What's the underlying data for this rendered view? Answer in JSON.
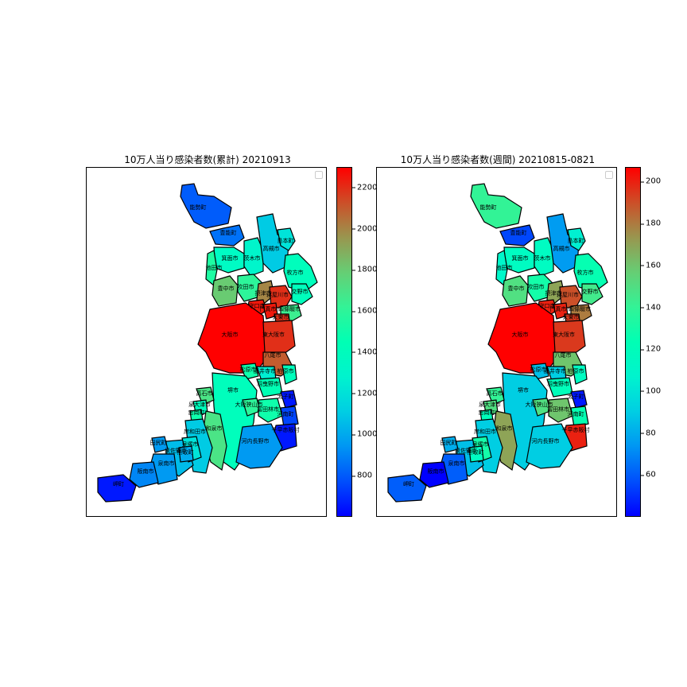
{
  "panels": [
    {
      "title": "10万人当り感染者数(累計)  20210913",
      "colorbar": {
        "colormap": "rainbow",
        "min": 600,
        "max": 2300,
        "ticks": [
          "800",
          "1000",
          "1200",
          "1400",
          "1600",
          "1800",
          "2000",
          "2200"
        ]
      }
    },
    {
      "title": "10万人当り感染者数(週間)  20210815-0821",
      "colorbar": {
        "colormap": "rainbow",
        "min": 40,
        "max": 207,
        "ticks": [
          "60",
          "80",
          "100",
          "120",
          "140",
          "160",
          "180",
          "200"
        ]
      }
    }
  ],
  "municipalities": [
    {
      "name": "能勢町",
      "cumulative": 800,
      "weekly": 140
    },
    {
      "name": "豊能町",
      "cumulative": 850,
      "weekly": 55
    },
    {
      "name": "箕面市",
      "cumulative": 1350,
      "weekly": 115
    },
    {
      "name": "池田市",
      "cumulative": 1550,
      "weekly": 110
    },
    {
      "name": "茨木市",
      "cumulative": 1300,
      "weekly": 115
    },
    {
      "name": "高槻市",
      "cumulative": 1100,
      "weekly": 75
    },
    {
      "name": "島本町",
      "cumulative": 1200,
      "weekly": 105
    },
    {
      "name": "豊中市",
      "cumulative": 1800,
      "weekly": 150
    },
    {
      "name": "吹田市",
      "cumulative": 1600,
      "weekly": 130
    },
    {
      "name": "摂津市",
      "cumulative": 2000,
      "weekly": 170
    },
    {
      "name": "枚方市",
      "cumulative": 1400,
      "weekly": 125
    },
    {
      "name": "寝屋川市",
      "cumulative": 2200,
      "weekly": 190
    },
    {
      "name": "交野市",
      "cumulative": 1400,
      "weekly": 145
    },
    {
      "name": "守口市",
      "cumulative": 2250,
      "weekly": 200
    },
    {
      "name": "門真市",
      "cumulative": 2250,
      "weekly": 200
    },
    {
      "name": "四條畷市",
      "cumulative": 1650,
      "weekly": 180
    },
    {
      "name": "大東市",
      "cumulative": 2200,
      "weekly": 195
    },
    {
      "name": "大阪市",
      "cumulative": 2300,
      "weekly": 207
    },
    {
      "name": "東大阪市",
      "cumulative": 2200,
      "weekly": 195
    },
    {
      "name": "八尾市",
      "cumulative": 2100,
      "weekly": 160
    },
    {
      "name": "松原市",
      "cumulative": 1500,
      "weekly": 85
    },
    {
      "name": "柏原市",
      "cumulative": 1400,
      "weekly": 115
    },
    {
      "name": "藤井寺市",
      "cumulative": 1250,
      "weekly": 90
    },
    {
      "name": "羽曳野市",
      "cumulative": 1450,
      "weekly": 120
    },
    {
      "name": "堺市",
      "cumulative": 1400,
      "weekly": 90
    },
    {
      "name": "大阪狭山市",
      "cumulative": 1600,
      "weekly": 150
    },
    {
      "name": "富田林市",
      "cumulative": 1500,
      "weekly": 160
    },
    {
      "name": "太子町",
      "cumulative": 650,
      "weekly": 45
    },
    {
      "name": "河南町",
      "cumulative": 750,
      "weekly": 125
    },
    {
      "name": "千早赤阪村",
      "cumulative": 650,
      "weekly": 200
    },
    {
      "name": "高石市",
      "cumulative": 1700,
      "weekly": 140
    },
    {
      "name": "泉大津市",
      "cumulative": 1400,
      "weekly": 150
    },
    {
      "name": "和泉市",
      "cumulative": 1700,
      "weekly": 170
    },
    {
      "name": "忠岡町",
      "cumulative": 1500,
      "weekly": 120
    },
    {
      "name": "岸和田市",
      "cumulative": 1100,
      "weekly": 90
    },
    {
      "name": "河内長野市",
      "cumulative": 950,
      "weekly": 90
    },
    {
      "name": "泉佐野市",
      "cumulative": 1050,
      "weekly": 85
    },
    {
      "name": "貝塚市",
      "cumulative": 1200,
      "weekly": 130
    },
    {
      "name": "熊取町",
      "cumulative": 1000,
      "weekly": 115
    },
    {
      "name": "田尻町",
      "cumulative": 950,
      "weekly": 80
    },
    {
      "name": "泉南市",
      "cumulative": 950,
      "weekly": 60
    },
    {
      "name": "阪南市",
      "cumulative": 900,
      "weekly": 40
    },
    {
      "name": "岬町",
      "cumulative": 650,
      "weekly": 60
    }
  ]
}
